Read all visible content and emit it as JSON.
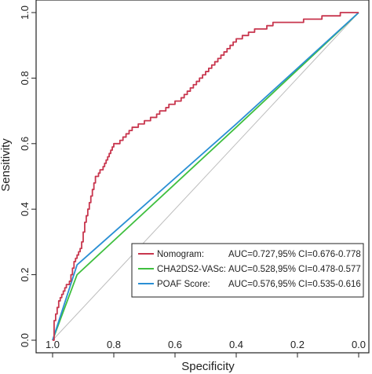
{
  "chart_data": {
    "type": "line",
    "title": "",
    "xlabel": "Specificity",
    "ylabel": "Sensitivity",
    "xlim": [
      1.0,
      0.0
    ],
    "ylim": [
      0.0,
      1.0
    ],
    "x_reversed": true,
    "x_ticks": [
      1.0,
      0.8,
      0.6,
      0.4,
      0.2,
      0.0
    ],
    "x_tick_labels": [
      "1.0",
      "0.8",
      "0.6",
      "0.4",
      "0.2",
      "0.0"
    ],
    "y_ticks": [
      0.0,
      0.2,
      0.4,
      0.6,
      0.8,
      1.0
    ],
    "y_tick_labels": [
      "0.0",
      "0.2",
      "0.4",
      "0.6",
      "0.8",
      "1.0"
    ],
    "grid": false,
    "legend_position": "bottom-right",
    "reference_line": {
      "x": [
        1.0,
        0.0
      ],
      "y": [
        0.0,
        1.0
      ],
      "color": "#bdbdbd"
    },
    "series": [
      {
        "name": "Nomogram:",
        "auc_text": "AUC=0.727,95% CI=0.676-0.778",
        "color": "#c8364e",
        "step": true,
        "x": [
          1.0,
          0.995,
          0.99,
          0.985,
          0.98,
          0.975,
          0.97,
          0.965,
          0.96,
          0.955,
          0.95,
          0.945,
          0.94,
          0.935,
          0.93,
          0.925,
          0.92,
          0.915,
          0.91,
          0.905,
          0.9,
          0.895,
          0.89,
          0.885,
          0.88,
          0.875,
          0.87,
          0.865,
          0.86,
          0.855,
          0.85,
          0.845,
          0.84,
          0.835,
          0.83,
          0.825,
          0.82,
          0.815,
          0.81,
          0.805,
          0.8,
          0.79,
          0.78,
          0.77,
          0.76,
          0.75,
          0.74,
          0.73,
          0.72,
          0.71,
          0.7,
          0.69,
          0.68,
          0.67,
          0.66,
          0.65,
          0.64,
          0.63,
          0.62,
          0.61,
          0.6,
          0.59,
          0.58,
          0.57,
          0.56,
          0.55,
          0.54,
          0.53,
          0.52,
          0.51,
          0.5,
          0.49,
          0.48,
          0.47,
          0.46,
          0.45,
          0.44,
          0.43,
          0.42,
          0.41,
          0.4,
          0.38,
          0.36,
          0.34,
          0.32,
          0.3,
          0.28,
          0.26,
          0.24,
          0.22,
          0.2,
          0.18,
          0.16,
          0.14,
          0.12,
          0.1,
          0.08,
          0.06,
          0.04,
          0.02,
          0.0
        ],
        "y": [
          0.0,
          0.06,
          0.08,
          0.1,
          0.12,
          0.13,
          0.14,
          0.15,
          0.16,
          0.17,
          0.17,
          0.18,
          0.2,
          0.22,
          0.24,
          0.25,
          0.26,
          0.27,
          0.28,
          0.3,
          0.33,
          0.36,
          0.38,
          0.4,
          0.42,
          0.44,
          0.46,
          0.48,
          0.5,
          0.5,
          0.51,
          0.52,
          0.52,
          0.53,
          0.54,
          0.55,
          0.56,
          0.57,
          0.58,
          0.59,
          0.6,
          0.6,
          0.61,
          0.62,
          0.63,
          0.64,
          0.65,
          0.65,
          0.66,
          0.66,
          0.67,
          0.67,
          0.68,
          0.68,
          0.69,
          0.7,
          0.7,
          0.71,
          0.72,
          0.72,
          0.73,
          0.73,
          0.74,
          0.75,
          0.76,
          0.77,
          0.78,
          0.79,
          0.8,
          0.81,
          0.82,
          0.83,
          0.84,
          0.85,
          0.86,
          0.87,
          0.88,
          0.89,
          0.9,
          0.91,
          0.92,
          0.93,
          0.94,
          0.95,
          0.95,
          0.96,
          0.97,
          0.97,
          0.97,
          0.97,
          0.97,
          0.98,
          0.98,
          0.98,
          0.99,
          0.99,
          0.99,
          1.0,
          1.0,
          1.0,
          1.0
        ]
      },
      {
        "name": "CHA2DS2-VASc:",
        "auc_text": "AUC=0.528,95% CI=0.478-0.577",
        "color": "#3fbf3f",
        "step": false,
        "x": [
          1.0,
          0.92,
          0.4,
          0.0
        ],
        "y": [
          0.0,
          0.2,
          0.65,
          1.0
        ]
      },
      {
        "name": "POAF Score:",
        "auc_text": "AUC=0.576,95% CI=0.535-0.616",
        "color": "#2a8fd4",
        "step": false,
        "x": [
          1.0,
          0.92,
          0.4,
          0.0
        ],
        "y": [
          0.0,
          0.23,
          0.66,
          1.0
        ]
      }
    ]
  }
}
